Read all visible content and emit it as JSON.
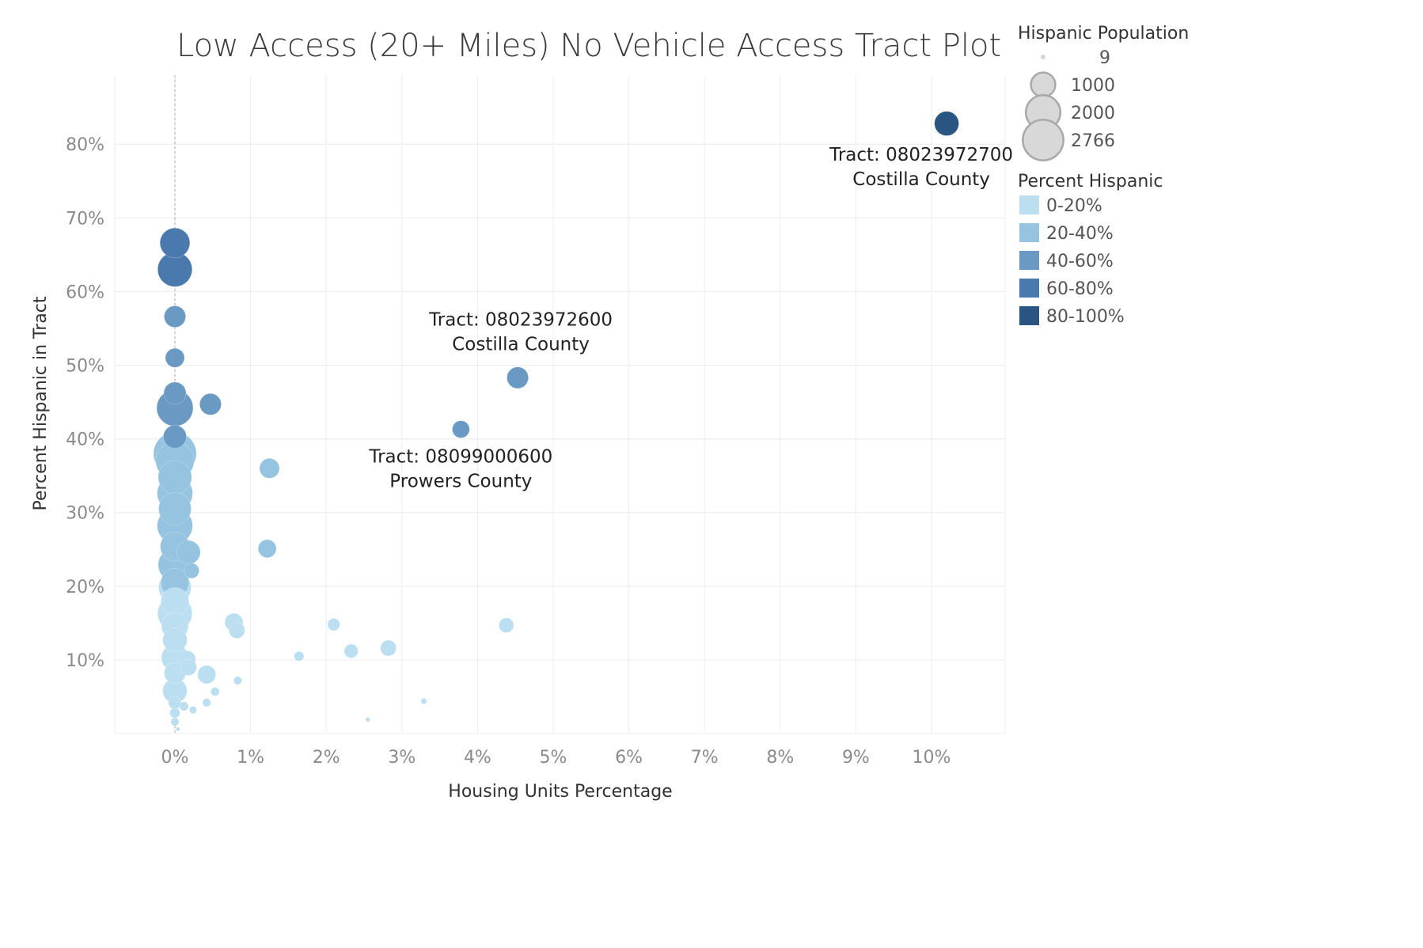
{
  "chart_data": {
    "type": "scatter",
    "title": "Low Access (20+ Miles) No Vehicle Access Tract Plot",
    "xlabel": "Housing Units Percentage",
    "ylabel": "Percent Hispanic in Tract",
    "xlim": [
      -0.8,
      10.95
    ],
    "ylim": [
      0,
      89
    ],
    "x_ticks": [
      {
        "value": 0,
        "label": "0%"
      },
      {
        "value": 1,
        "label": "1%"
      },
      {
        "value": 2,
        "label": "2%"
      },
      {
        "value": 3,
        "label": "3%"
      },
      {
        "value": 4,
        "label": "4%"
      },
      {
        "value": 5,
        "label": "5%"
      },
      {
        "value": 6,
        "label": "6%"
      },
      {
        "value": 7,
        "label": "7%"
      },
      {
        "value": 8,
        "label": "8%"
      },
      {
        "value": 9,
        "label": "9%"
      },
      {
        "value": 10,
        "label": "10%"
      }
    ],
    "y_ticks": [
      {
        "value": 10,
        "label": "10%"
      },
      {
        "value": 20,
        "label": "20%"
      },
      {
        "value": 30,
        "label": "30%"
      },
      {
        "value": 40,
        "label": "40%"
      },
      {
        "value": 50,
        "label": "50%"
      },
      {
        "value": 60,
        "label": "60%"
      },
      {
        "value": 70,
        "label": "70%"
      },
      {
        "value": 80,
        "label": "80%"
      }
    ],
    "grid": true,
    "reference_line_x": 0,
    "size_legend": {
      "title": "Hispanic Population",
      "items": [
        {
          "value": 9,
          "label": "9"
        },
        {
          "value": 1000,
          "label": "1000"
        },
        {
          "value": 2000,
          "label": "2000"
        },
        {
          "value": 2766,
          "label": "2766"
        }
      ]
    },
    "color_legend": {
      "title": "Percent Hispanic",
      "items": [
        {
          "label": "0-20%",
          "color": "#bcdef1"
        },
        {
          "label": "20-40%",
          "color": "#95c3e0"
        },
        {
          "label": "40-60%",
          "color": "#6a9ac4"
        },
        {
          "label": "60-80%",
          "color": "#4a7aad"
        },
        {
          "label": "80-100%",
          "color": "#2a5582"
        }
      ]
    },
    "annotations": [
      {
        "x": 10.2,
        "y": 82.8,
        "line1": "Tract: 08023972700",
        "line2": "Costilla County",
        "position": "below"
      },
      {
        "x": 4.53,
        "y": 48.3,
        "line1": "Tract: 08023972600",
        "line2": "Costilla County",
        "position": "above"
      },
      {
        "x": 3.78,
        "y": 41.3,
        "line1": "Tract: 08099000600",
        "line2": "Prowers County",
        "position": "below"
      }
    ],
    "points": [
      {
        "x": 10.2,
        "y": 82.8,
        "pop": 900
      },
      {
        "x": 0.0,
        "y": 66.6,
        "pop": 1350
      },
      {
        "x": 0.0,
        "y": 63.0,
        "pop": 1800
      },
      {
        "x": 0.0,
        "y": 56.6,
        "pop": 700
      },
      {
        "x": 0.0,
        "y": 51.0,
        "pop": 550
      },
      {
        "x": 0.0,
        "y": 46.2,
        "pop": 750
      },
      {
        "x": 0.0,
        "y": 44.2,
        "pop": 2000
      },
      {
        "x": 0.47,
        "y": 44.7,
        "pop": 700
      },
      {
        "x": 0.0,
        "y": 40.3,
        "pop": 800
      },
      {
        "x": 4.53,
        "y": 48.3,
        "pop": 700
      },
      {
        "x": 3.78,
        "y": 41.3,
        "pop": 450
      },
      {
        "x": 0.0,
        "y": 38.0,
        "pop": 2766
      },
      {
        "x": 0.0,
        "y": 37.0,
        "pop": 2200
      },
      {
        "x": 0.0,
        "y": 34.8,
        "pop": 1700
      },
      {
        "x": 0.0,
        "y": 32.6,
        "pop": 1900
      },
      {
        "x": 0.0,
        "y": 30.5,
        "pop": 1600
      },
      {
        "x": 0.0,
        "y": 28.2,
        "pop": 1900
      },
      {
        "x": 0.0,
        "y": 25.4,
        "pop": 1300
      },
      {
        "x": 0.18,
        "y": 24.6,
        "pop": 850
      },
      {
        "x": 0.0,
        "y": 22.9,
        "pop": 1700
      },
      {
        "x": 0.22,
        "y": 22.1,
        "pop": 350
      },
      {
        "x": 0.0,
        "y": 20.5,
        "pop": 1200
      },
      {
        "x": 1.25,
        "y": 36.0,
        "pop": 600
      },
      {
        "x": 1.22,
        "y": 25.1,
        "pop": 500
      },
      {
        "x": 0.0,
        "y": 19.8,
        "pop": 1600
      },
      {
        "x": 0.0,
        "y": 17.9,
        "pop": 1200
      },
      {
        "x": 0.0,
        "y": 16.3,
        "pop": 1800
      },
      {
        "x": 0.0,
        "y": 14.6,
        "pop": 1100
      },
      {
        "x": 0.0,
        "y": 12.7,
        "pop": 900
      },
      {
        "x": 0.0,
        "y": 10.3,
        "pop": 1100
      },
      {
        "x": 0.16,
        "y": 10.1,
        "pop": 450
      },
      {
        "x": 0.0,
        "y": 8.2,
        "pop": 700
      },
      {
        "x": 0.18,
        "y": 9.0,
        "pop": 400
      },
      {
        "x": 0.42,
        "y": 8.0,
        "pop": 500
      },
      {
        "x": 0.0,
        "y": 5.8,
        "pop": 900
      },
      {
        "x": 0.0,
        "y": 4.2,
        "pop": 250
      },
      {
        "x": 0.0,
        "y": 2.8,
        "pop": 150
      },
      {
        "x": 0.0,
        "y": 1.6,
        "pop": 100
      },
      {
        "x": 0.04,
        "y": 0.6,
        "pop": 20
      },
      {
        "x": 0.12,
        "y": 3.7,
        "pop": 120
      },
      {
        "x": 0.24,
        "y": 3.2,
        "pop": 80
      },
      {
        "x": 0.42,
        "y": 4.2,
        "pop": 100
      },
      {
        "x": 0.53,
        "y": 5.7,
        "pop": 110
      },
      {
        "x": 0.78,
        "y": 15.1,
        "pop": 500
      },
      {
        "x": 0.82,
        "y": 14.0,
        "pop": 380
      },
      {
        "x": 0.83,
        "y": 7.2,
        "pop": 100
      },
      {
        "x": 1.64,
        "y": 10.5,
        "pop": 140
      },
      {
        "x": 2.1,
        "y": 14.8,
        "pop": 230
      },
      {
        "x": 2.33,
        "y": 11.2,
        "pop": 290
      },
      {
        "x": 2.82,
        "y": 11.6,
        "pop": 380
      },
      {
        "x": 2.55,
        "y": 1.9,
        "pop": 30
      },
      {
        "x": 3.29,
        "y": 4.4,
        "pop": 50
      },
      {
        "x": 4.38,
        "y": 14.7,
        "pop": 330
      }
    ]
  }
}
